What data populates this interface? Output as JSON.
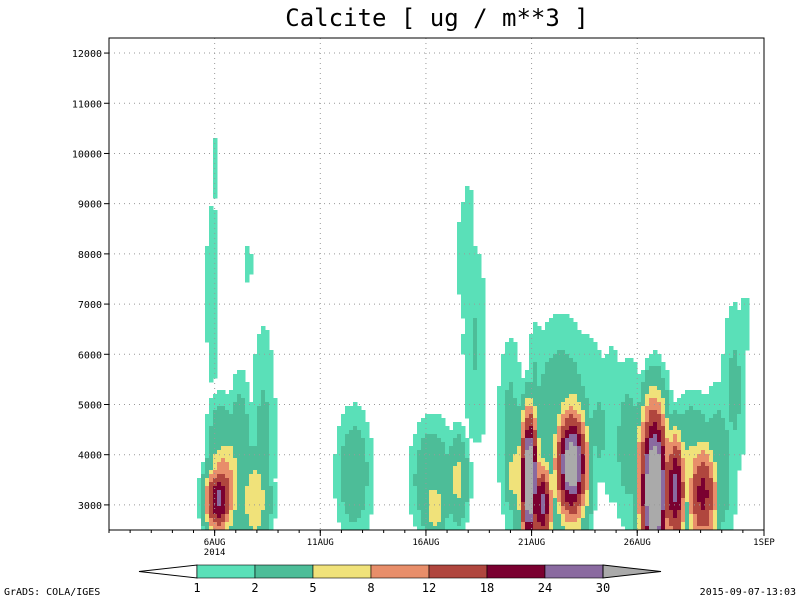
{
  "chart_data": {
    "type": "heatmap",
    "title": "Calcite [ ug / m**3 ]",
    "xlabel": "",
    "ylabel": "",
    "y_ticks": [
      3000,
      4000,
      5000,
      6000,
      7000,
      8000,
      9000,
      10000,
      11000,
      12000
    ],
    "ylim": [
      2500,
      12300
    ],
    "x_axis": {
      "start": "2014-08-01",
      "end": "2014-09-01",
      "ticks": [
        {
          "day": 6,
          "label": "6AUG",
          "sublabel": "2014"
        },
        {
          "day": 11,
          "label": "11AUG",
          "sublabel": ""
        },
        {
          "day": 16,
          "label": "16AUG",
          "sublabel": ""
        },
        {
          "day": 21,
          "label": "21AUG",
          "sublabel": ""
        },
        {
          "day": 26,
          "label": "26AUG",
          "sublabel": ""
        },
        {
          "day": 32,
          "label": "1SEP",
          "sublabel": ""
        }
      ]
    },
    "grid": true,
    "colorbar": {
      "levels": [
        "1",
        "2",
        "5",
        "8",
        "12",
        "18",
        "24",
        "30"
      ],
      "colors": [
        "#ffffff",
        "#5ae0b8",
        "#4dbd98",
        "#f0e27a",
        "#e88e6a",
        "#b0463e",
        "#7a0030",
        "#8a6aa0",
        "#aaaaaa"
      ]
    },
    "blobs": [
      {
        "day": 5.9,
        "alt": 7200,
        "sd": 0.28,
        "sa": 1700,
        "peak": 1.8
      },
      {
        "day": 6.0,
        "alt": 9700,
        "sd": 0.15,
        "sa": 700,
        "peak": 1.5
      },
      {
        "day": 7.6,
        "alt": 7800,
        "sd": 0.15,
        "sa": 450,
        "peak": 1.5
      },
      {
        "day": 6.3,
        "alt": 4300,
        "sd": 0.5,
        "sa": 650,
        "peak": 3.4
      },
      {
        "day": 6.6,
        "alt": 3500,
        "sd": 0.6,
        "sa": 850,
        "peak": 7
      },
      {
        "day": 6.4,
        "alt": 3300,
        "sd": 0.45,
        "sa": 600,
        "peak": 14
      },
      {
        "day": 6.2,
        "alt": 3100,
        "sd": 0.4,
        "sa": 400,
        "peak": 26
      },
      {
        "day": 7.2,
        "alt": 4300,
        "sd": 0.4,
        "sa": 900,
        "peak": 3.3
      },
      {
        "day": 7.9,
        "alt": 3100,
        "sd": 0.5,
        "sa": 700,
        "peak": 7
      },
      {
        "day": 8.3,
        "alt": 4300,
        "sd": 0.45,
        "sa": 1700,
        "peak": 2.4
      },
      {
        "day": 12.6,
        "alt": 3600,
        "sd": 0.6,
        "sa": 900,
        "peak": 3.5
      },
      {
        "day": 16.3,
        "alt": 3500,
        "sd": 0.7,
        "sa": 800,
        "peak": 4
      },
      {
        "day": 16.4,
        "alt": 2950,
        "sd": 0.4,
        "sa": 450,
        "peak": 7
      },
      {
        "day": 17.5,
        "alt": 3500,
        "sd": 0.35,
        "sa": 600,
        "peak": 6
      },
      {
        "day": 17.9,
        "alt": 7900,
        "sd": 0.4,
        "sa": 1200,
        "peak": 1.7
      },
      {
        "day": 18.3,
        "alt": 6200,
        "sd": 0.45,
        "sa": 1600,
        "peak": 2.1
      },
      {
        "day": 18.0,
        "alt": 9000,
        "sd": 0.2,
        "sa": 500,
        "peak": 1.4
      },
      {
        "day": 18.5,
        "alt": 4800,
        "sd": 0.3,
        "sa": 600,
        "peak": 1.5
      },
      {
        "day": 20.0,
        "alt": 4400,
        "sd": 0.45,
        "sa": 1400,
        "peak": 2.6
      },
      {
        "day": 20.2,
        "alt": 3600,
        "sd": 0.3,
        "sa": 500,
        "peak": 7
      },
      {
        "day": 20.9,
        "alt": 3500,
        "sd": 0.25,
        "sa": 800,
        "peak": 45
      },
      {
        "day": 20.9,
        "alt": 3500,
        "sd": 0.5,
        "sa": 1000,
        "peak": 10
      },
      {
        "day": 21.5,
        "alt": 3000,
        "sd": 0.3,
        "sa": 500,
        "peak": 26
      },
      {
        "day": 21.2,
        "alt": 5400,
        "sd": 0.3,
        "sa": 1000,
        "peak": 2.2
      },
      {
        "day": 22.4,
        "alt": 4300,
        "sd": 1.1,
        "sa": 1500,
        "peak": 4
      },
      {
        "day": 22.9,
        "alt": 3800,
        "sd": 0.5,
        "sa": 850,
        "peak": 20
      },
      {
        "day": 22.9,
        "alt": 3800,
        "sd": 0.45,
        "sa": 650,
        "peak": 38
      },
      {
        "day": 23.1,
        "alt": 5500,
        "sd": 1.2,
        "sa": 800,
        "peak": 2.0
      },
      {
        "day": 24.2,
        "alt": 4500,
        "sd": 0.4,
        "sa": 800,
        "peak": 2.5
      },
      {
        "day": 24.8,
        "alt": 4600,
        "sd": 0.5,
        "sa": 1300,
        "peak": 2.0
      },
      {
        "day": 25.6,
        "alt": 4200,
        "sd": 0.6,
        "sa": 1200,
        "peak": 2.8
      },
      {
        "day": 26.4,
        "alt": 3900,
        "sd": 0.35,
        "sa": 600,
        "peak": 14
      },
      {
        "day": 26.8,
        "alt": 3300,
        "sd": 0.4,
        "sa": 1000,
        "peak": 45
      },
      {
        "day": 27.2,
        "alt": 4900,
        "sd": 0.35,
        "sa": 700,
        "peak": 2.2
      },
      {
        "day": 27.8,
        "alt": 3300,
        "sd": 0.3,
        "sa": 700,
        "peak": 26
      },
      {
        "day": 28.6,
        "alt": 3600,
        "sd": 0.8,
        "sa": 900,
        "peak": 6
      },
      {
        "day": 29.1,
        "alt": 3200,
        "sd": 0.45,
        "sa": 650,
        "peak": 20
      },
      {
        "day": 29.8,
        "alt": 3700,
        "sd": 0.6,
        "sa": 1100,
        "peak": 3.5
      },
      {
        "day": 30.6,
        "alt": 5300,
        "sd": 0.45,
        "sa": 1300,
        "peak": 2.4
      },
      {
        "day": 31.1,
        "alt": 6600,
        "sd": 0.25,
        "sa": 600,
        "peak": 1.5
      }
    ]
  },
  "footer": {
    "left": "GrADS: COLA/IGES",
    "right": "2015-09-07-13:03"
  }
}
